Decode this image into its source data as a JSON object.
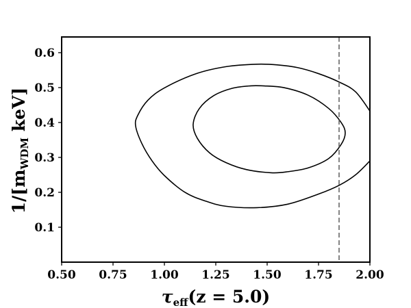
{
  "chart_data": {
    "type": "line",
    "title": "",
    "xlabel": {
      "main": "τ",
      "sub": "eff",
      "rest": "(z = 5.0)"
    },
    "ylabel": {
      "prefix": "1/[m",
      "sub": "WDM",
      "suffix": " keV]"
    },
    "xlim": [
      0.5,
      2.0
    ],
    "ylim": [
      0.0,
      0.645
    ],
    "x_ticks": [
      0.5,
      0.75,
      1.0,
      1.25,
      1.5,
      1.75,
      2.0
    ],
    "x_tick_labels": [
      "0.50",
      "0.75",
      "1.00",
      "1.25",
      "1.50",
      "1.75",
      "2.00"
    ],
    "y_ticks": [
      0.1,
      0.2,
      0.3,
      0.4,
      0.5,
      0.6
    ],
    "y_tick_labels": [
      "0.1",
      "0.2",
      "0.3",
      "0.4",
      "0.5",
      "0.6"
    ],
    "grid": false,
    "series": [
      {
        "style": "solid",
        "color": "#000000",
        "points": [
          [
            2.0,
            0.433
          ],
          [
            1.93,
            0.488
          ],
          [
            1.85,
            0.516
          ],
          [
            1.75,
            0.54
          ],
          [
            1.65,
            0.557
          ],
          [
            1.55,
            0.565
          ],
          [
            1.45,
            0.567
          ],
          [
            1.3,
            0.56
          ],
          [
            1.15,
            0.539
          ],
          [
            1.0,
            0.499
          ],
          [
            0.92,
            0.464
          ],
          [
            0.87,
            0.42
          ],
          [
            0.86,
            0.39
          ],
          [
            0.89,
            0.34
          ],
          [
            0.94,
            0.29
          ],
          [
            1.0,
            0.248
          ],
          [
            1.1,
            0.2
          ],
          [
            1.2,
            0.175
          ],
          [
            1.3,
            0.16
          ],
          [
            1.45,
            0.156
          ],
          [
            1.6,
            0.166
          ],
          [
            1.75,
            0.195
          ],
          [
            1.85,
            0.22
          ],
          [
            1.93,
            0.25
          ],
          [
            2.0,
            0.29
          ]
        ]
      },
      {
        "style": "solid",
        "color": "#000000",
        "points": [
          [
            1.48,
            0.505
          ],
          [
            1.58,
            0.5
          ],
          [
            1.7,
            0.478
          ],
          [
            1.8,
            0.44
          ],
          [
            1.86,
            0.4
          ],
          [
            1.88,
            0.37
          ],
          [
            1.86,
            0.337
          ],
          [
            1.8,
            0.297
          ],
          [
            1.7,
            0.27
          ],
          [
            1.6,
            0.259
          ],
          [
            1.52,
            0.256
          ],
          [
            1.4,
            0.265
          ],
          [
            1.3,
            0.285
          ],
          [
            1.22,
            0.313
          ],
          [
            1.16,
            0.355
          ],
          [
            1.14,
            0.395
          ],
          [
            1.17,
            0.44
          ],
          [
            1.24,
            0.477
          ],
          [
            1.33,
            0.498
          ],
          [
            1.42,
            0.505
          ],
          [
            1.48,
            0.505
          ]
        ]
      },
      {
        "style": "dashed",
        "color": "#666666",
        "vertical_x": 1.85
      }
    ]
  }
}
